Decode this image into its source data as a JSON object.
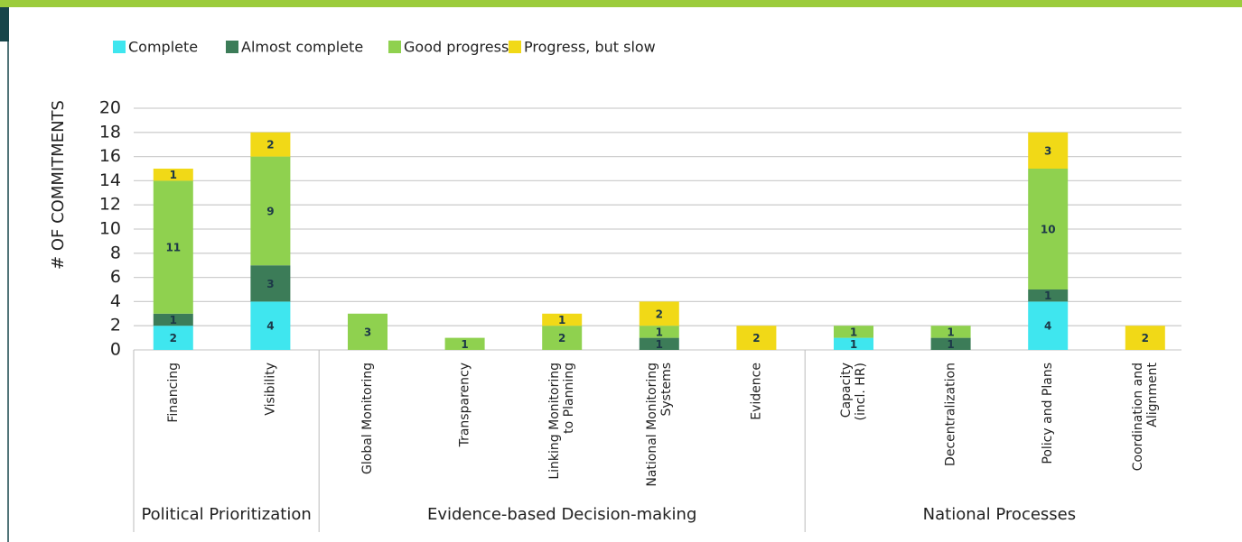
{
  "chart_data": {
    "type": "stacked-bar",
    "ylabel": "# OF COMMITMENTS",
    "categories": [
      "Financing",
      "Visibility",
      "Global Monitoring",
      "Transparency",
      "Linking Monitoring\nto Planning",
      "National Monitoring\nSystems",
      "Evidence",
      "Capacity\n(incl. HR)",
      "Decentralization",
      "Policy and Plans",
      "Coordination and\nAlignment"
    ],
    "groups": [
      {
        "name": "Political Prioritization",
        "count": 2
      },
      {
        "name": "Evidence-based Decision-making",
        "count": 5
      },
      {
        "name": "National Processes",
        "count": 4
      }
    ],
    "series": [
      {
        "name": "Complete",
        "color": "#3fe6ef",
        "values": [
          2,
          4,
          null,
          null,
          null,
          null,
          null,
          1,
          null,
          4,
          null
        ]
      },
      {
        "name": "Almost complete",
        "color": "#3c7c58",
        "values": [
          1,
          3,
          null,
          null,
          null,
          1,
          null,
          null,
          1,
          1,
          null
        ]
      },
      {
        "name": "Good progress",
        "color": "#8fd14f",
        "values": [
          11,
          9,
          3,
          1,
          2,
          1,
          null,
          1,
          1,
          10,
          null
        ]
      },
      {
        "name": "Progress, but slow",
        "color": "#f1d917",
        "values": [
          1,
          2,
          null,
          null,
          1,
          2,
          2,
          null,
          null,
          3,
          2
        ]
      }
    ],
    "ylim": [
      0,
      20
    ],
    "yticks": [
      0,
      2,
      4,
      6,
      8,
      10,
      12,
      14,
      16,
      18,
      20
    ],
    "grid": true
  }
}
